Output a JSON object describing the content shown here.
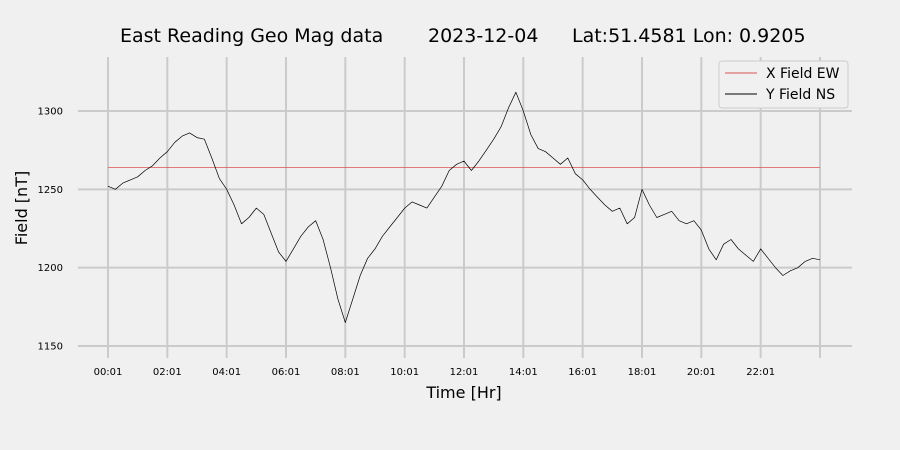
{
  "chart_data": {
    "type": "line",
    "title": "East Reading Geo Mag data",
    "date": "2023-12-04",
    "location": "Lat:51.4581  Lon: 0.9205",
    "xlabel": "Time  [Hr]",
    "ylabel": "Field  [nT]",
    "xlim": [
      0,
      24
    ],
    "ylim": [
      1145,
      1335
    ],
    "x_ticks": [
      {
        "value": 0,
        "label": "00:01"
      },
      {
        "value": 2,
        "label": "02:01"
      },
      {
        "value": 4,
        "label": "04:01"
      },
      {
        "value": 6,
        "label": "06:01"
      },
      {
        "value": 8,
        "label": "08:01"
      },
      {
        "value": 10,
        "label": "10:01"
      },
      {
        "value": 12,
        "label": "12:01"
      },
      {
        "value": 14,
        "label": "14:01"
      },
      {
        "value": 16,
        "label": "16:01"
      },
      {
        "value": 18,
        "label": "18:01"
      },
      {
        "value": 20,
        "label": "20:01"
      },
      {
        "value": 22,
        "label": "22:01"
      },
      {
        "value": 24,
        "label": ""
      }
    ],
    "y_ticks": [
      1150,
      1200,
      1250,
      1300
    ],
    "grid": true,
    "legend_position": "top-right",
    "series": [
      {
        "name": "X Field EW",
        "color": "#d9534f",
        "x": [
          0,
          24
        ],
        "y": [
          1264,
          1264
        ]
      },
      {
        "name": "Y Field NS",
        "color": "#000000",
        "x": [
          0,
          0.25,
          0.5,
          0.75,
          1.0,
          1.25,
          1.5,
          1.75,
          2.0,
          2.25,
          2.5,
          2.75,
          3.0,
          3.25,
          3.5,
          3.75,
          4.0,
          4.25,
          4.5,
          4.75,
          5.0,
          5.25,
          5.5,
          5.75,
          6.0,
          6.25,
          6.5,
          6.75,
          7.0,
          7.25,
          7.5,
          7.75,
          8.0,
          8.25,
          8.5,
          8.75,
          9.0,
          9.25,
          9.5,
          9.75,
          10.0,
          10.25,
          10.5,
          10.75,
          11.0,
          11.25,
          11.5,
          11.75,
          12.0,
          12.25,
          12.5,
          12.75,
          13.0,
          13.25,
          13.5,
          13.75,
          14.0,
          14.25,
          14.5,
          14.75,
          15.0,
          15.25,
          15.5,
          15.75,
          16.0,
          16.25,
          16.5,
          16.75,
          17.0,
          17.25,
          17.5,
          17.75,
          18.0,
          18.25,
          18.5,
          18.75,
          19.0,
          19.25,
          19.5,
          19.75,
          20.0,
          20.25,
          20.5,
          20.75,
          21.0,
          21.25,
          21.5,
          21.75,
          22.0,
          22.25,
          22.5,
          22.75,
          23.0,
          23.25,
          23.5,
          23.75,
          24.0
        ],
        "y": [
          1252,
          1250,
          1254,
          1256,
          1258,
          1262,
          1265,
          1270,
          1274,
          1280,
          1284,
          1286,
          1283,
          1282,
          1270,
          1257,
          1250,
          1240,
          1228,
          1232,
          1238,
          1234,
          1222,
          1210,
          1204,
          1212,
          1220,
          1226,
          1230,
          1218,
          1200,
          1180,
          1165,
          1180,
          1195,
          1206,
          1212,
          1220,
          1226,
          1232,
          1238,
          1242,
          1240,
          1238,
          1245,
          1252,
          1262,
          1266,
          1268,
          1262,
          1268,
          1275,
          1282,
          1290,
          1302,
          1312,
          1300,
          1285,
          1276,
          1274,
          1270,
          1266,
          1270,
          1260,
          1256,
          1250,
          1245,
          1240,
          1236,
          1238,
          1228,
          1232,
          1250,
          1240,
          1232,
          1234,
          1236,
          1230,
          1228,
          1230,
          1224,
          1212,
          1205,
          1215,
          1218,
          1212,
          1208,
          1204,
          1212,
          1206,
          1200,
          1195,
          1198,
          1200,
          1204,
          1206,
          1205
        ]
      }
    ]
  }
}
